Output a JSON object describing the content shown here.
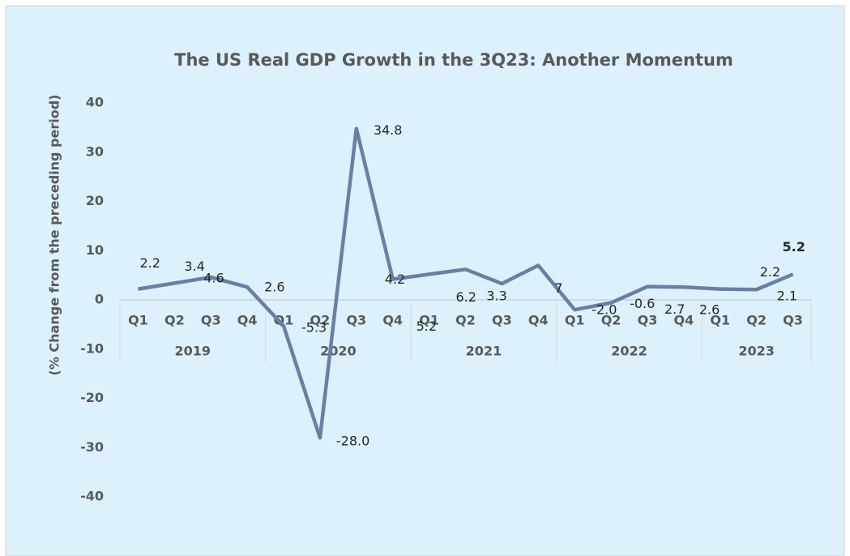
{
  "chart_data": {
    "type": "line",
    "title": "The US Real GDP Growth in the 3Q23: Another Momentum",
    "y_axis_label": "(% Change from the preceding period)",
    "groups": [
      {
        "name": "2019",
        "categories": [
          "Q1",
          "Q2",
          "Q3",
          "Q4"
        ]
      },
      {
        "name": "2020",
        "categories": [
          "Q1",
          "Q2",
          "Q3",
          "Q4"
        ]
      },
      {
        "name": "2021",
        "categories": [
          "Q1",
          "Q2",
          "Q3",
          "Q4"
        ]
      },
      {
        "name": "2022",
        "categories": [
          "Q1",
          "Q2",
          "Q3",
          "Q4"
        ]
      },
      {
        "name": "2023",
        "categories": [
          "Q1",
          "Q2",
          "Q3"
        ]
      }
    ],
    "series": [
      {
        "name": "Real GDP growth",
        "color": "#6a7fa6",
        "values": [
          2.2,
          3.4,
          4.6,
          2.6,
          -5.3,
          -28.0,
          34.8,
          4.2,
          5.2,
          6.2,
          3.3,
          7,
          -2.0,
          -0.6,
          2.7,
          2.6,
          2.2,
          2.1,
          5.2
        ],
        "value_labels": [
          "2.2",
          "3.4",
          "4.6",
          "2.6",
          "-5.3",
          "-28.0",
          "34.8",
          "4.2",
          "5.2",
          "6.2",
          "3.3",
          "7",
          "-2.0",
          "-0.6",
          "2.7",
          "2.6",
          "2.2",
          "2.1",
          "5.2"
        ]
      }
    ],
    "ylim": [
      -40,
      40
    ],
    "yticks": [
      -40,
      -30,
      -20,
      -10,
      0,
      10,
      20,
      30,
      40
    ],
    "grid": false
  }
}
